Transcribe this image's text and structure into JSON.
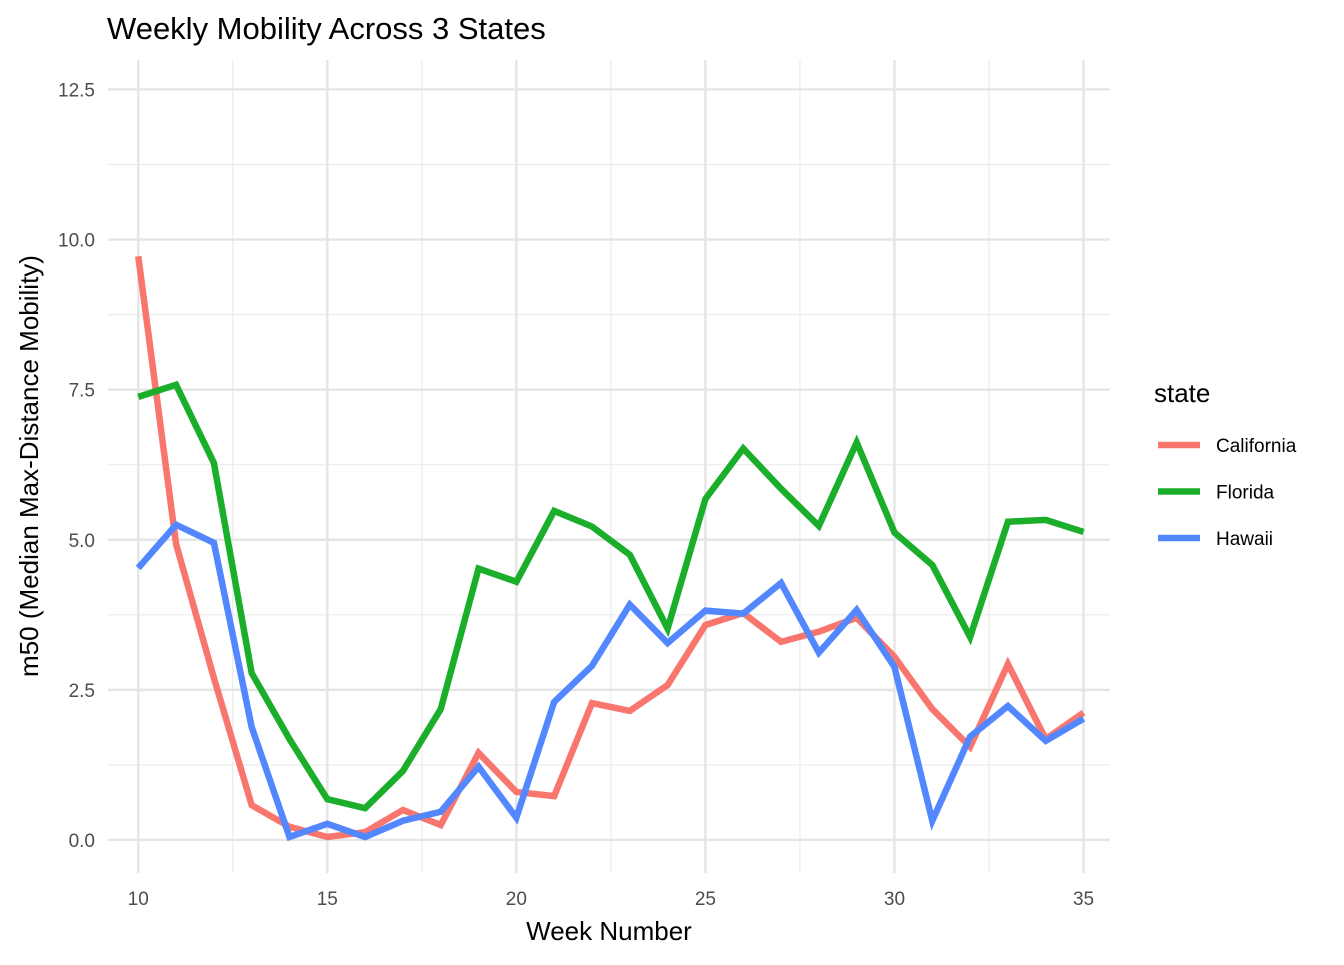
{
  "chart_data": {
    "type": "line",
    "title": "Weekly Mobility Across 3 States",
    "xlabel": "Week Number",
    "ylabel": "m50 (Median Max-Distance Mobility)",
    "xlim": [
      9.2,
      35.7
    ],
    "ylim": [
      -0.55,
      12.99
    ],
    "xticks": [
      10,
      15,
      20,
      25,
      30,
      35
    ],
    "xtick_labels": [
      "10",
      "15",
      "20",
      "25",
      "30",
      "35"
    ],
    "yticks": [
      0,
      2.5,
      5,
      7.5,
      10,
      12.5
    ],
    "ytick_labels": [
      "0.0",
      "2.5",
      "5.0",
      "7.5",
      "10.0",
      "12.5"
    ],
    "grid": true,
    "legend_title": "state",
    "legend_position": "right",
    "x": [
      10,
      11,
      12,
      13,
      14,
      15,
      16,
      17,
      18,
      19,
      20,
      21,
      22,
      23,
      24,
      25,
      26,
      27,
      28,
      29,
      30,
      31,
      32,
      33,
      34,
      35
    ],
    "series": [
      {
        "name": "California",
        "color": "#F8766D",
        "values": [
          9.72,
          4.93,
          2.7,
          0.58,
          0.22,
          0.05,
          0.13,
          0.5,
          0.25,
          1.45,
          0.8,
          0.73,
          2.28,
          2.15,
          2.58,
          3.58,
          3.78,
          3.3,
          3.47,
          3.7,
          3.05,
          2.18,
          1.55,
          2.93,
          1.68,
          2.12
        ]
      },
      {
        "name": "Florida",
        "color": "#1AAE2A",
        "values": [
          7.38,
          7.58,
          6.28,
          2.78,
          1.68,
          0.68,
          0.53,
          1.15,
          2.18,
          4.52,
          4.3,
          5.48,
          5.22,
          4.75,
          3.52,
          5.68,
          6.52,
          5.85,
          5.23,
          6.62,
          5.12,
          4.58,
          3.38,
          5.3,
          5.33,
          5.13
        ]
      },
      {
        "name": "Hawaii",
        "color": "#5287FF",
        "values": [
          4.53,
          5.25,
          4.95,
          1.88,
          0.05,
          0.27,
          0.05,
          0.32,
          0.47,
          1.22,
          0.37,
          2.3,
          2.9,
          3.92,
          3.28,
          3.82,
          3.77,
          4.28,
          3.12,
          3.83,
          2.88,
          0.32,
          1.72,
          2.23,
          1.65,
          2.02
        ]
      }
    ]
  }
}
